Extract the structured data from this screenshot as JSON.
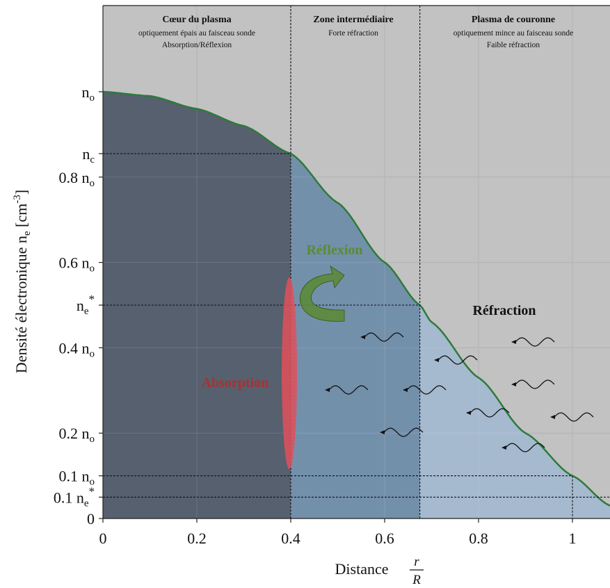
{
  "colors": {
    "background_zone": "#c2c2c2",
    "core_fill": "#56606e",
    "intermediate_fill": "#7390ab",
    "corona_fill": "#a5b9cf",
    "curve": "#2d7a3a",
    "n_c": "#a03c3c",
    "n_e_star": "#3a5a80",
    "absorption": "#a83232",
    "ellipse": "#e0505a",
    "reflexion": "#5c8a34",
    "refraction": "#111111"
  },
  "zones": {
    "core": {
      "title": "Cœur du plasma",
      "line1": "optiquement épais au faisceau sonde",
      "line2": "Absorption/Réflexion"
    },
    "intermediate": {
      "title": "Zone intermédiaire",
      "line1": "Forte réfraction"
    },
    "corona": {
      "title": "Plasma de couronne",
      "line1": "optiquement mince au faisceau sonde",
      "line2": "Faible réfraction"
    }
  },
  "y_axis": {
    "label_main": "Densité électronique n",
    "label_sub": "e",
    "label_unit_open": " [cm",
    "label_unit_exp": "-3",
    "label_unit_close": "]",
    "ticks": [
      {
        "id": "n0",
        "prefix": "",
        "base": "n",
        "sub": "o",
        "sup": "",
        "value": 1.0,
        "color": "#111111"
      },
      {
        "id": "nc",
        "prefix": "",
        "base": "n",
        "sub": "c",
        "sup": "",
        "value": 0.855,
        "color": "#a03c3c"
      },
      {
        "id": "n08",
        "prefix": "0.8 ",
        "base": "n",
        "sub": "o",
        "sup": "",
        "value": 0.8,
        "color": "#111111"
      },
      {
        "id": "n06",
        "prefix": "0.6 ",
        "base": "n",
        "sub": "o",
        "sup": "",
        "value": 0.6,
        "color": "#111111"
      },
      {
        "id": "nestar",
        "prefix": "",
        "base": "n",
        "sub": "e",
        "sup": "*",
        "value": 0.5,
        "color": "#3a5a80"
      },
      {
        "id": "n04",
        "prefix": "0.4 ",
        "base": "n",
        "sub": "o",
        "sup": "",
        "value": 0.4,
        "color": "#111111"
      },
      {
        "id": "n02",
        "prefix": "0.2 ",
        "base": "n",
        "sub": "o",
        "sup": "",
        "value": 0.2,
        "color": "#111111"
      },
      {
        "id": "n01",
        "prefix": "0.1 ",
        "base": "n",
        "sub": "o",
        "sup": "",
        "value": 0.1,
        "color": "#111111"
      },
      {
        "id": "n01estar",
        "prefix": "0.1 ",
        "base": "n",
        "sub": "e",
        "sup": "*",
        "value": 0.05,
        "color": "#3a5a80"
      },
      {
        "id": "zero",
        "prefix": "0",
        "base": "",
        "sub": "",
        "sup": "",
        "value": 0.0,
        "color": "#111111"
      }
    ]
  },
  "x_axis": {
    "label": "Distance",
    "frac_num": "r",
    "frac_den": "R",
    "ticks": [
      "0",
      "0.2",
      "0.4",
      "0.6",
      "0.8",
      "1"
    ]
  },
  "annotations": {
    "reflexion": "Réflexion",
    "absorption": "Absorption",
    "refraction": "Réfraction"
  },
  "chart_data": {
    "type": "area",
    "x_range": [
      0,
      1.08
    ],
    "y_range": [
      0,
      1.0
    ],
    "critical_radius": 0.4,
    "critical_density": 0.855,
    "intermediate_radius": 0.675,
    "intermediate_density": 0.5,
    "outer_radius": 1.0,
    "outer_density": 0.1,
    "curve_x": [
      0,
      0.1,
      0.2,
      0.3,
      0.4,
      0.5,
      0.6,
      0.675,
      0.7,
      0.8,
      0.9,
      1.0,
      1.08
    ],
    "curve_y": [
      1.0,
      0.99,
      0.96,
      0.92,
      0.855,
      0.74,
      0.6,
      0.5,
      0.46,
      0.33,
      0.2,
      0.1,
      0.03
    ]
  }
}
